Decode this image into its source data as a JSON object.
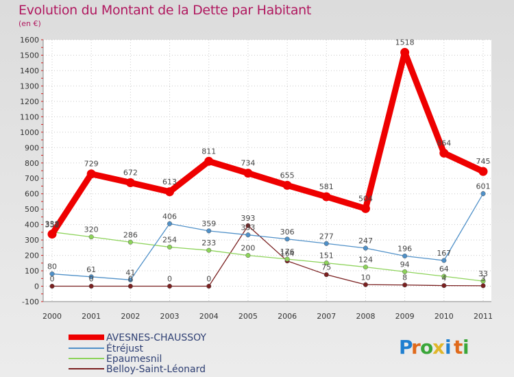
{
  "chart_data": {
    "type": "line",
    "title": "Evolution du Montant de la Dette par Habitant",
    "subtitle": "(en €)",
    "categories": [
      "2000",
      "2001",
      "2002",
      "2003",
      "2004",
      "2005",
      "2006",
      "2007",
      "2008",
      "2009",
      "2010",
      "2011"
    ],
    "ylim": [
      -100,
      1600
    ],
    "yticks": [
      -100,
      0,
      100,
      200,
      300,
      400,
      500,
      600,
      700,
      800,
      900,
      1000,
      1100,
      1200,
      1300,
      1400,
      1500,
      1600
    ],
    "grid": true,
    "legend_position": "bottom-left",
    "series": [
      {
        "name": "AVESNES-CHAUSSOY",
        "color": "#ee0000",
        "values": [
          338,
          729,
          672,
          613,
          811,
          734,
          655,
          581,
          504,
          1518,
          864,
          745
        ],
        "labels": [
          "338",
          "729",
          "672",
          "613",
          "811",
          "734",
          "655",
          "581",
          "504",
          "1518",
          "864",
          "745"
        ]
      },
      {
        "name": "Étréjust",
        "color": "#4f90c8",
        "values": [
          80,
          61,
          41,
          406,
          359,
          333,
          306,
          277,
          247,
          196,
          167,
          601
        ],
        "labels": [
          "80",
          "61",
          "41",
          "406",
          "359",
          "333",
          "306",
          "277",
          "247",
          "196",
          "167",
          "601"
        ]
      },
      {
        "name": "Epaumesnil",
        "color": "#8dd35a",
        "values": [
          352,
          320,
          286,
          254,
          233,
          200,
          176,
          151,
          124,
          94,
          64,
          33
        ],
        "labels": [
          "352",
          "320",
          "286",
          "254",
          "233",
          "200",
          "176",
          "151",
          "124",
          "94",
          "64",
          "33"
        ]
      },
      {
        "name": "Belloy-Saint-Léonard",
        "color": "#7a2020",
        "values": [
          0,
          0,
          0,
          0,
          0,
          393,
          164,
          75,
          10,
          8,
          4,
          3
        ],
        "labels": [
          "0",
          "0",
          "0",
          "0",
          "0",
          "393",
          "164",
          "75",
          "10",
          "8",
          "4",
          "3"
        ]
      }
    ]
  },
  "branding": {
    "text": "Proxiti",
    "colors": [
      "#1f7fd0",
      "#e06a1b",
      "#3aa639",
      "#e0b62a",
      "#1f7fd0",
      "#e06a1b",
      "#3aa639"
    ]
  }
}
